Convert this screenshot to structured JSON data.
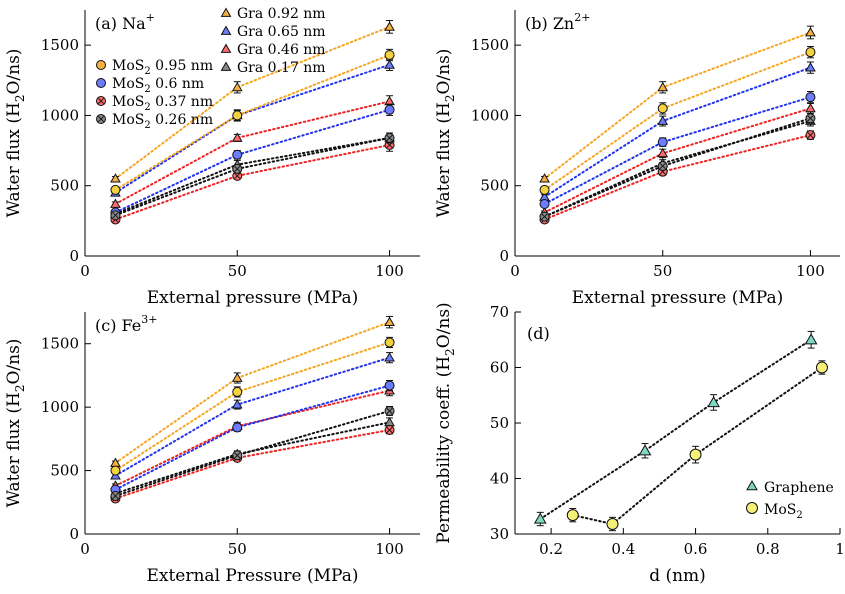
{
  "figure": {
    "background": "#ffffff"
  },
  "chart_data": [
    {
      "id": "a",
      "type": "scatter",
      "panel_label": "(a)",
      "ion": "Na",
      "ion_charge": "+",
      "xlabel": "External pressure (MPa)",
      "ylabel_parts": [
        "Water flux (H",
        "2",
        "O/ns)"
      ],
      "xlim": [
        0,
        110
      ],
      "ylim": [
        0,
        1750
      ],
      "xticks": [
        0,
        50,
        100
      ],
      "yticks": [
        0,
        500,
        1000,
        1500
      ],
      "x": [
        10,
        50,
        100
      ],
      "legend_position": "top-left",
      "legend": {
        "graphene": [
          {
            "label": "Gra 0.92 nm",
            "color": "#f5b041"
          },
          {
            "label": "Gra 0.65 nm",
            "color": "#6b7cff"
          },
          {
            "label": "Gra 0.46 nm",
            "color": "#ff6b6b"
          },
          {
            "label": "Gra 0.17 nm",
            "color": "#888888"
          }
        ],
        "mos2": [
          {
            "prefix": "MoS",
            "sub": "2",
            "size": " 0.95 nm",
            "color": "#f5b041"
          },
          {
            "prefix": "MoS",
            "sub": "2",
            "size": " 0.6 nm",
            "color": "#6b7cff"
          },
          {
            "prefix": "MoS",
            "sub": "2",
            "size": " 0.37 nm",
            "color": "#ff6b6b"
          },
          {
            "prefix": "MoS",
            "sub": "2",
            "size": " 0.26 nm",
            "color": "#888888"
          }
        ]
      },
      "series": [
        {
          "name": "Gra 0.92 nm",
          "marker": "triangle",
          "color": "#f5b041",
          "line_color": "#f5a623",
          "values": [
            550,
            1200,
            1630
          ],
          "errors": [
            15,
            40,
            45
          ]
        },
        {
          "name": "Gra 0.65 nm",
          "marker": "triangle",
          "color": "#6b7cff",
          "line_color": "#2233ee",
          "values": [
            450,
            1000,
            1360
          ],
          "errors": [
            15,
            35,
            40
          ]
        },
        {
          "name": "Gra 0.46 nm",
          "marker": "triangle",
          "color": "#ff6b6b",
          "line_color": "#ee2222",
          "values": [
            370,
            840,
            1100
          ],
          "errors": [
            15,
            25,
            40
          ]
        },
        {
          "name": "Gra 0.17 nm",
          "marker": "triangle",
          "color": "#888888",
          "line_color": "#111111",
          "values": [
            300,
            650,
            840
          ],
          "errors": [
            10,
            30,
            35
          ]
        },
        {
          "name": "MoS2 0.95 nm",
          "marker": "circle",
          "color": "#f5d240",
          "line_color": "#f5a623",
          "values": [
            470,
            1000,
            1430
          ],
          "errors": [
            15,
            40,
            40
          ]
        },
        {
          "name": "MoS2 0.6 nm",
          "marker": "circle",
          "color": "#6b7cff",
          "line_color": "#2233ee",
          "values": [
            310,
            720,
            1040
          ],
          "errors": [
            10,
            30,
            40
          ]
        },
        {
          "name": "MoS2 0.37 nm",
          "marker": "circle-x",
          "color": "#ff6b6b",
          "line_color": "#ee2222",
          "values": [
            260,
            570,
            790
          ],
          "errors": [
            10,
            20,
            45
          ]
        },
        {
          "name": "MoS2 0.26 nm",
          "marker": "circle-x",
          "color": "#888888",
          "line_color": "#111111",
          "values": [
            290,
            620,
            840
          ],
          "errors": [
            10,
            25,
            35
          ]
        }
      ]
    },
    {
      "id": "b",
      "type": "scatter",
      "panel_label": "(b)",
      "ion": "Zn",
      "ion_charge": "2+",
      "xlabel": "External pressure (MPa)",
      "ylabel_parts": [
        "Water flux (H",
        "2",
        "O/ns)"
      ],
      "xlim": [
        0,
        110
      ],
      "ylim": [
        0,
        1750
      ],
      "xticks": [
        0,
        50,
        100
      ],
      "yticks": [
        0,
        500,
        1000,
        1500
      ],
      "x": [
        10,
        50,
        100
      ],
      "series": [
        {
          "name": "Gra 0.92 nm",
          "marker": "triangle",
          "color": "#f5b041",
          "line_color": "#f5a623",
          "values": [
            550,
            1200,
            1590
          ],
          "errors": [
            15,
            40,
            45
          ]
        },
        {
          "name": "Gra 0.65 nm",
          "marker": "triangle",
          "color": "#6b7cff",
          "line_color": "#2233ee",
          "values": [
            420,
            960,
            1340
          ],
          "errors": [
            15,
            35,
            40
          ]
        },
        {
          "name": "Gra 0.46 nm",
          "marker": "triangle",
          "color": "#ff6b6b",
          "line_color": "#ee2222",
          "values": [
            310,
            730,
            1050
          ],
          "errors": [
            10,
            30,
            35
          ]
        },
        {
          "name": "Gra 0.17 nm",
          "marker": "triangle",
          "color": "#888888",
          "line_color": "#111111",
          "values": [
            280,
            660,
            960
          ],
          "errors": [
            10,
            25,
            35
          ]
        },
        {
          "name": "MoS2 0.95 nm",
          "marker": "circle",
          "color": "#f5d240",
          "line_color": "#f5a623",
          "values": [
            470,
            1050,
            1450
          ],
          "errors": [
            15,
            40,
            40
          ]
        },
        {
          "name": "MoS2 0.6 nm",
          "marker": "circle",
          "color": "#6b7cff",
          "line_color": "#2233ee",
          "values": [
            370,
            810,
            1130
          ],
          "errors": [
            10,
            30,
            40
          ]
        },
        {
          "name": "MoS2 0.37 nm",
          "marker": "circle-x",
          "color": "#ff6b6b",
          "line_color": "#ee2222",
          "values": [
            260,
            600,
            860
          ],
          "errors": [
            10,
            25,
            30
          ]
        },
        {
          "name": "MoS2 0.26 nm",
          "marker": "circle-x",
          "color": "#888888",
          "line_color": "#111111",
          "values": [
            280,
            640,
            980
          ],
          "errors": [
            10,
            25,
            35
          ]
        }
      ]
    },
    {
      "id": "c",
      "type": "scatter",
      "panel_label": "(c)",
      "ion": "Fe",
      "ion_charge": "3+",
      "xlabel": "External Pressure (MPa)",
      "ylabel_parts": [
        "Water flux (H",
        "2",
        "O/ns)"
      ],
      "xlim": [
        0,
        110
      ],
      "ylim": [
        0,
        1750
      ],
      "xticks": [
        0,
        50,
        100
      ],
      "yticks": [
        0,
        500,
        1000,
        1500
      ],
      "x": [
        10,
        50,
        100
      ],
      "series": [
        {
          "name": "Gra 0.92 nm",
          "marker": "triangle",
          "color": "#f5b041",
          "line_color": "#f5a623",
          "values": [
            560,
            1230,
            1670
          ],
          "errors": [
            15,
            40,
            45
          ]
        },
        {
          "name": "Gra 0.65 nm",
          "marker": "triangle",
          "color": "#6b7cff",
          "line_color": "#2233ee",
          "values": [
            460,
            1020,
            1390
          ],
          "errors": [
            15,
            35,
            40
          ]
        },
        {
          "name": "Gra 0.46 nm",
          "marker": "triangle",
          "color": "#ff6b6b",
          "line_color": "#ee2222",
          "values": [
            380,
            850,
            1130
          ],
          "errors": [
            15,
            30,
            40
          ]
        },
        {
          "name": "Gra 0.17 nm",
          "marker": "triangle",
          "color": "#888888",
          "line_color": "#111111",
          "values": [
            320,
            630,
            880
          ],
          "errors": [
            10,
            25,
            35
          ]
        },
        {
          "name": "MoS2 0.95 nm",
          "marker": "circle",
          "color": "#f5d240",
          "line_color": "#f5a623",
          "values": [
            500,
            1120,
            1510
          ],
          "errors": [
            15,
            40,
            40
          ]
        },
        {
          "name": "MoS2 0.6 nm",
          "marker": "circle",
          "color": "#6b7cff",
          "line_color": "#2233ee",
          "values": [
            350,
            840,
            1170
          ],
          "errors": [
            10,
            30,
            40
          ]
        },
        {
          "name": "MoS2 0.37 nm",
          "marker": "circle-x",
          "color": "#ff6b6b",
          "line_color": "#ee2222",
          "values": [
            280,
            600,
            820
          ],
          "errors": [
            10,
            25,
            30
          ]
        },
        {
          "name": "MoS2 0.26 nm",
          "marker": "circle-x",
          "color": "#888888",
          "line_color": "#111111",
          "values": [
            300,
            620,
            970
          ],
          "errors": [
            10,
            25,
            35
          ]
        }
      ]
    },
    {
      "id": "d",
      "type": "scatter",
      "panel_label": "(d)",
      "xlabel": "d (nm)",
      "ylabel_parts": [
        "Permeability coeff. (H",
        "2",
        "O/ns)"
      ],
      "xlim": [
        0.1,
        1.0
      ],
      "ylim": [
        30,
        70
      ],
      "xticks": [
        0.2,
        0.4,
        0.6,
        0.8,
        1
      ],
      "xtick_labels": [
        "0.2",
        "0.4",
        "0.6",
        "0.8",
        "1"
      ],
      "yticks": [
        30,
        40,
        50,
        60,
        70
      ],
      "legend_position": "bottom-right",
      "series": [
        {
          "name": "Graphene",
          "marker": "triangle",
          "color": "#7fd8c4",
          "line_color": "#111111",
          "x": [
            0.17,
            0.46,
            0.65,
            0.92
          ],
          "values": [
            32.7,
            45.0,
            53.7,
            65.0
          ],
          "errors": [
            1.2,
            1.3,
            1.4,
            1.5
          ]
        },
        {
          "name": "MoS2",
          "label_prefix": "MoS",
          "label_sub": "2",
          "marker": "circle",
          "color": "#f5f078",
          "line_color": "#111111",
          "x": [
            0.26,
            0.37,
            0.6,
            0.95
          ],
          "values": [
            33.4,
            31.8,
            44.3,
            60.0
          ],
          "errors": [
            1.2,
            1.2,
            1.5,
            1.2
          ]
        }
      ]
    }
  ]
}
